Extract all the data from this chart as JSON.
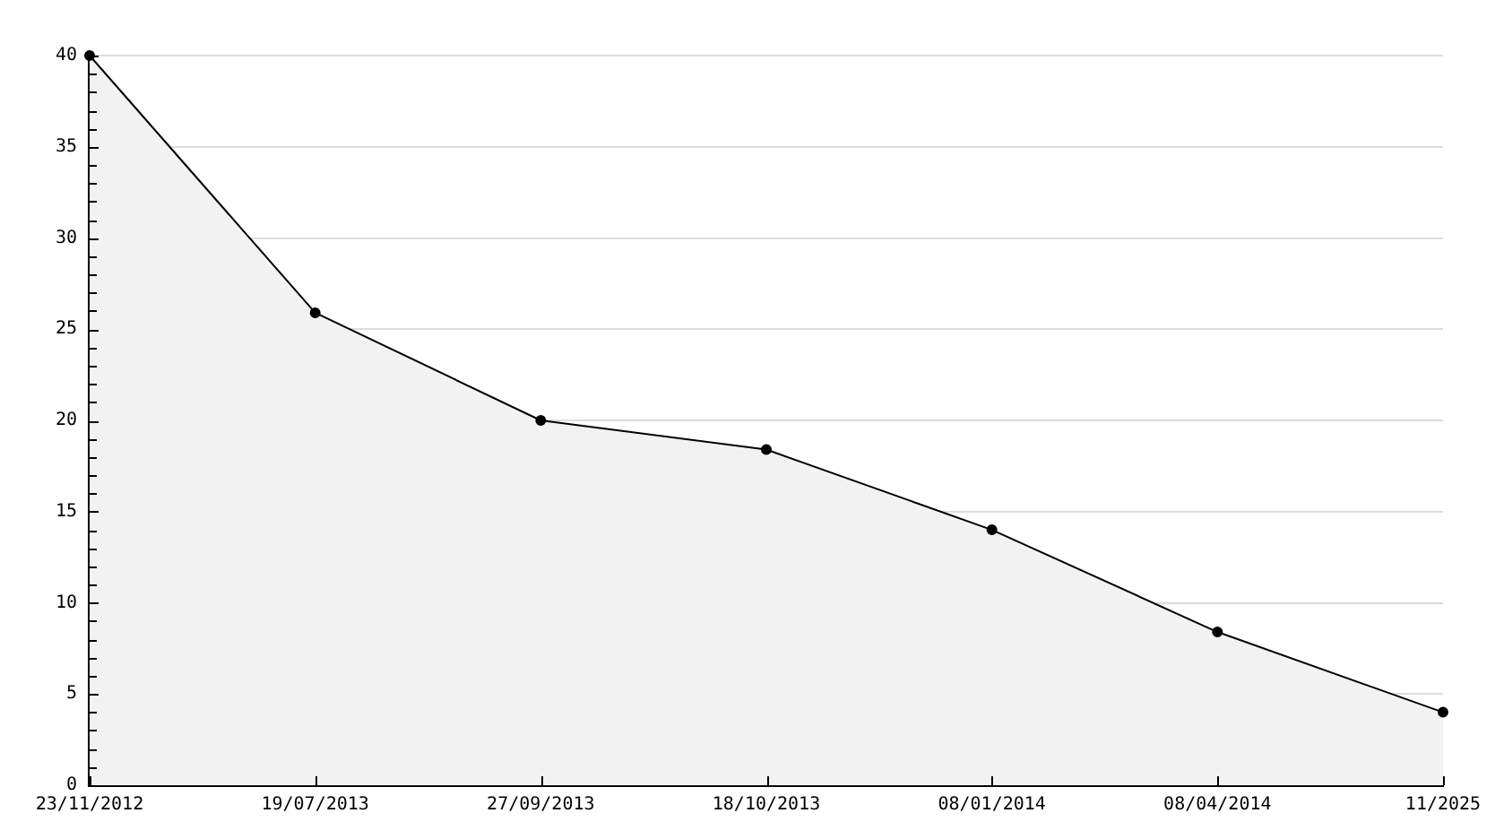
{
  "chart_data": {
    "type": "area",
    "categories": [
      "23/11/2012",
      "19/07/2013",
      "27/09/2013",
      "18/10/2013",
      "08/01/2014",
      "08/04/2014",
      "11/2025"
    ],
    "series": [
      {
        "color": "#000000",
        "values": [
          40,
          25.9,
          20,
          18.4,
          14,
          8.4,
          4
        ]
      }
    ],
    "ylim": [
      0,
      40
    ],
    "yticks": [
      0,
      {
        "value": 1,
        "label": null
      },
      {
        "value": 2,
        "label": null
      },
      {
        "value": 3,
        "label": null
      },
      {
        "value": 4,
        "label": null
      },
      5,
      {
        "value": 6,
        "label": null
      },
      {
        "value": 7,
        "label": null
      },
      {
        "value": 8,
        "label": null
      },
      {
        "value": 9,
        "label": null
      },
      10,
      {
        "value": 11,
        "label": null
      },
      {
        "value": 12,
        "label": null
      },
      {
        "value": 13,
        "label": null
      },
      {
        "value": 14,
        "label": null
      },
      15,
      {
        "value": 16,
        "label": null
      },
      {
        "value": 17,
        "label": null
      },
      {
        "value": 18,
        "label": null
      },
      {
        "value": 19,
        "label": null
      },
      20,
      {
        "value": 21,
        "label": null
      },
      {
        "value": 22,
        "label": null
      },
      {
        "value": 23,
        "label": null
      },
      {
        "value": 24,
        "label": null
      },
      25,
      {
        "value": 26,
        "label": null
      },
      {
        "value": 27,
        "label": null
      },
      {
        "value": 28,
        "label": null
      },
      {
        "value": 29,
        "label": null
      },
      30,
      {
        "value": 31,
        "label": null
      },
      {
        "value": 32,
        "label": null
      },
      {
        "value": 33,
        "label": null
      },
      {
        "value": 34,
        "label": null
      },
      35,
      {
        "value": 36,
        "label": null
      },
      {
        "value": 37,
        "label": null
      },
      {
        "value": 38,
        "label": null
      },
      {
        "value": 39,
        "label": null
      },
      40
    ],
    "grid": "y",
    "legend": false,
    "marker": "circle",
    "line_style": "solid"
  }
}
